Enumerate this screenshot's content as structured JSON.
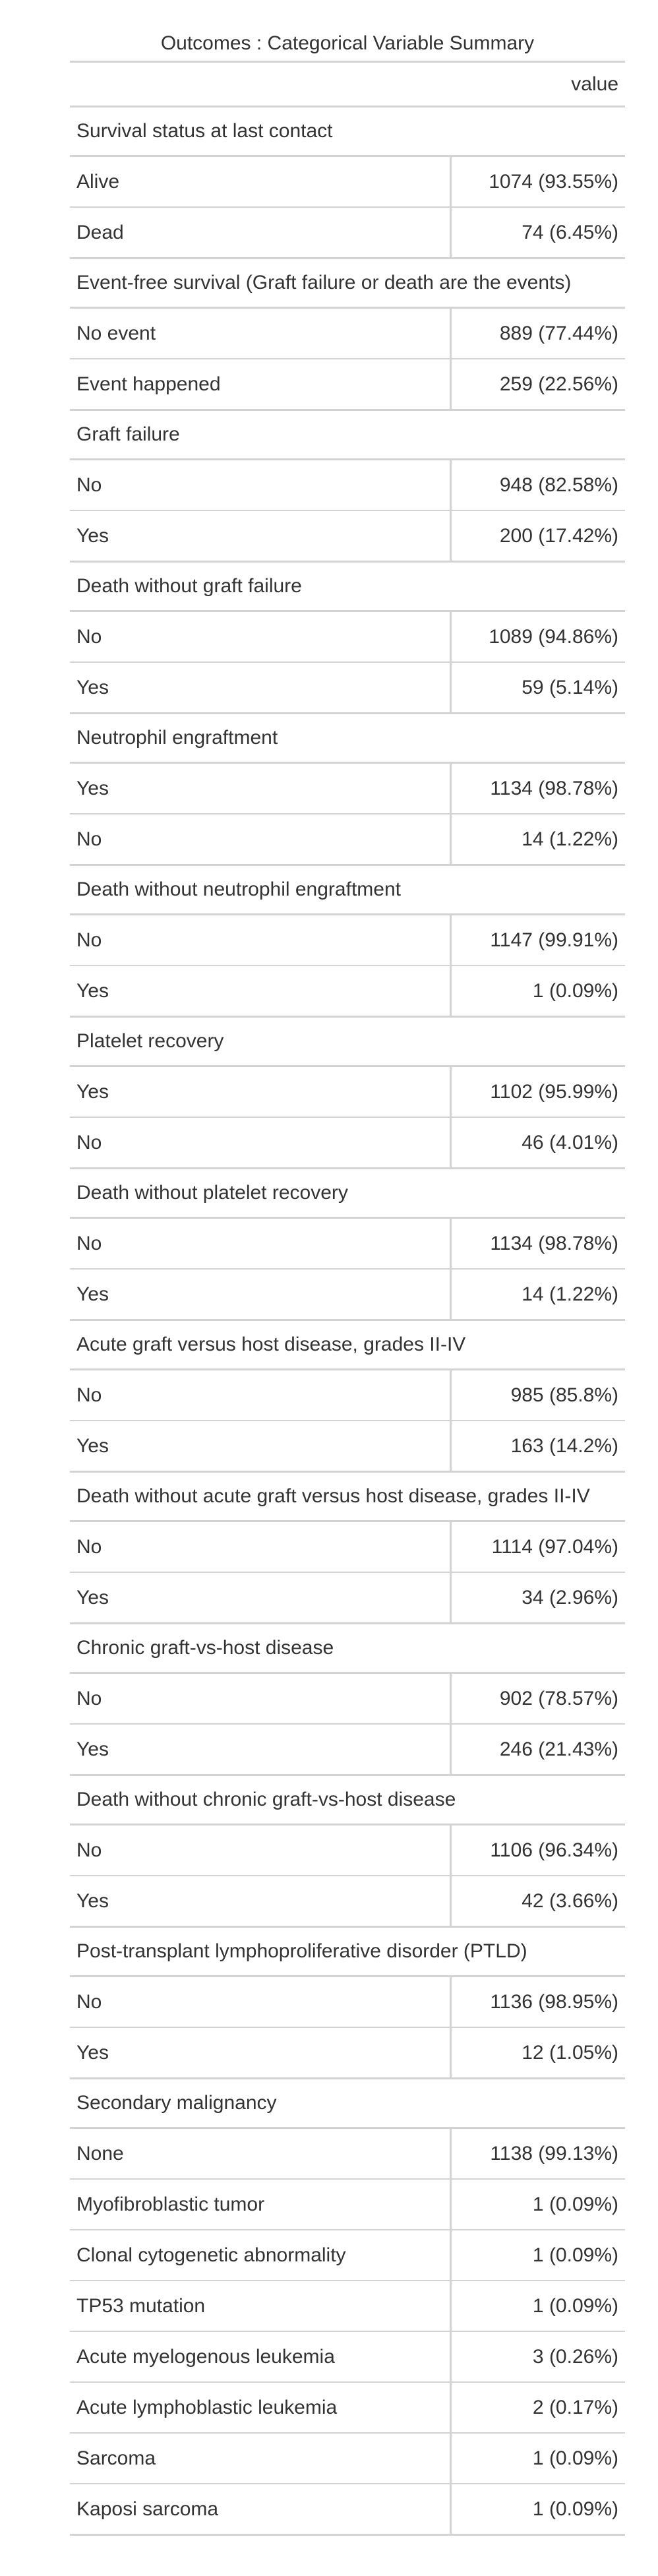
{
  "table": {
    "title": "Outcomes : Categorical Variable Summary",
    "column_header": "value",
    "groups": [
      {
        "label": "Survival status at last contact",
        "rows": [
          {
            "label": "Alive",
            "value": "1074 (93.55%)"
          },
          {
            "label": "Dead",
            "value": "74 (6.45%)"
          }
        ]
      },
      {
        "label": "Event-free survival (Graft failure or death are the events)",
        "rows": [
          {
            "label": "No event",
            "value": "889 (77.44%)"
          },
          {
            "label": "Event happened",
            "value": "259 (22.56%)"
          }
        ]
      },
      {
        "label": "Graft failure",
        "rows": [
          {
            "label": "No",
            "value": "948 (82.58%)"
          },
          {
            "label": "Yes",
            "value": "200 (17.42%)"
          }
        ]
      },
      {
        "label": "Death without graft failure",
        "rows": [
          {
            "label": "No",
            "value": "1089 (94.86%)"
          },
          {
            "label": "Yes",
            "value": "59 (5.14%)"
          }
        ]
      },
      {
        "label": "Neutrophil engraftment",
        "rows": [
          {
            "label": "Yes",
            "value": "1134 (98.78%)"
          },
          {
            "label": "No",
            "value": "14 (1.22%)"
          }
        ]
      },
      {
        "label": "Death without neutrophil engraftment",
        "rows": [
          {
            "label": "No",
            "value": "1147 (99.91%)"
          },
          {
            "label": "Yes",
            "value": "1 (0.09%)"
          }
        ]
      },
      {
        "label": "Platelet recovery",
        "rows": [
          {
            "label": "Yes",
            "value": "1102 (95.99%)"
          },
          {
            "label": "No",
            "value": "46 (4.01%)"
          }
        ]
      },
      {
        "label": "Death without platelet recovery",
        "rows": [
          {
            "label": "No",
            "value": "1134 (98.78%)"
          },
          {
            "label": "Yes",
            "value": "14 (1.22%)"
          }
        ]
      },
      {
        "label": "Acute graft versus host disease, grades II-IV",
        "rows": [
          {
            "label": "No",
            "value": "985 (85.8%)"
          },
          {
            "label": "Yes",
            "value": "163 (14.2%)"
          }
        ]
      },
      {
        "label": "Death without acute graft versus host disease, grades II-IV",
        "rows": [
          {
            "label": "No",
            "value": "1114 (97.04%)"
          },
          {
            "label": "Yes",
            "value": "34 (2.96%)"
          }
        ]
      },
      {
        "label": "Chronic graft-vs-host disease",
        "rows": [
          {
            "label": "No",
            "value": "902 (78.57%)"
          },
          {
            "label": "Yes",
            "value": "246 (21.43%)"
          }
        ]
      },
      {
        "label": "Death without chronic graft-vs-host disease",
        "rows": [
          {
            "label": "No",
            "value": "1106 (96.34%)"
          },
          {
            "label": "Yes",
            "value": "42 (3.66%)"
          }
        ]
      },
      {
        "label": "Post-transplant lymphoproliferative disorder (PTLD)",
        "rows": [
          {
            "label": "No",
            "value": "1136 (98.95%)"
          },
          {
            "label": "Yes",
            "value": "12 (1.05%)"
          }
        ]
      },
      {
        "label": "Secondary malignancy",
        "rows": [
          {
            "label": "None",
            "value": "1138 (99.13%)"
          },
          {
            "label": "Myofibroblastic tumor",
            "value": "1 (0.09%)"
          },
          {
            "label": "Clonal cytogenetic abnormality",
            "value": "1 (0.09%)"
          },
          {
            "label": "TP53 mutation",
            "value": "1 (0.09%)"
          },
          {
            "label": "Acute myelogenous leukemia",
            "value": "3 (0.26%)"
          },
          {
            "label": "Acute lymphoblastic leukemia",
            "value": "2 (0.17%)"
          },
          {
            "label": "Sarcoma",
            "value": "1 (0.09%)"
          },
          {
            "label": "Kaposi sarcoma",
            "value": "1 (0.09%)"
          }
        ]
      }
    ]
  }
}
